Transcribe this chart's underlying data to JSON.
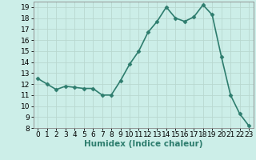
{
  "x": [
    0,
    1,
    2,
    3,
    4,
    5,
    6,
    7,
    8,
    9,
    10,
    11,
    12,
    13,
    14,
    15,
    16,
    17,
    18,
    19,
    20,
    21,
    22,
    23
  ],
  "y": [
    12.5,
    12.0,
    11.5,
    11.8,
    11.7,
    11.6,
    11.6,
    11.0,
    11.0,
    12.3,
    13.8,
    15.0,
    16.7,
    17.7,
    19.0,
    18.0,
    17.7,
    18.1,
    19.2,
    18.3,
    14.5,
    11.0,
    9.3,
    8.2
  ],
  "xlabel": "Humidex (Indice chaleur)",
  "line_color": "#2e7d6e",
  "marker": "D",
  "bg_color": "#cceee8",
  "grid_color": "#b8d8d0",
  "xlim": [
    -0.5,
    23.5
  ],
  "ylim": [
    8,
    19.5
  ],
  "yticks": [
    8,
    9,
    10,
    11,
    12,
    13,
    14,
    15,
    16,
    17,
    18,
    19
  ],
  "xticks": [
    0,
    1,
    2,
    3,
    4,
    5,
    6,
    7,
    8,
    9,
    10,
    11,
    12,
    13,
    14,
    15,
    16,
    17,
    18,
    19,
    20,
    21,
    22,
    23
  ],
  "xlabel_fontsize": 7.5,
  "tick_fontsize": 6.5,
  "linewidth": 1.2,
  "markersize": 2.5
}
